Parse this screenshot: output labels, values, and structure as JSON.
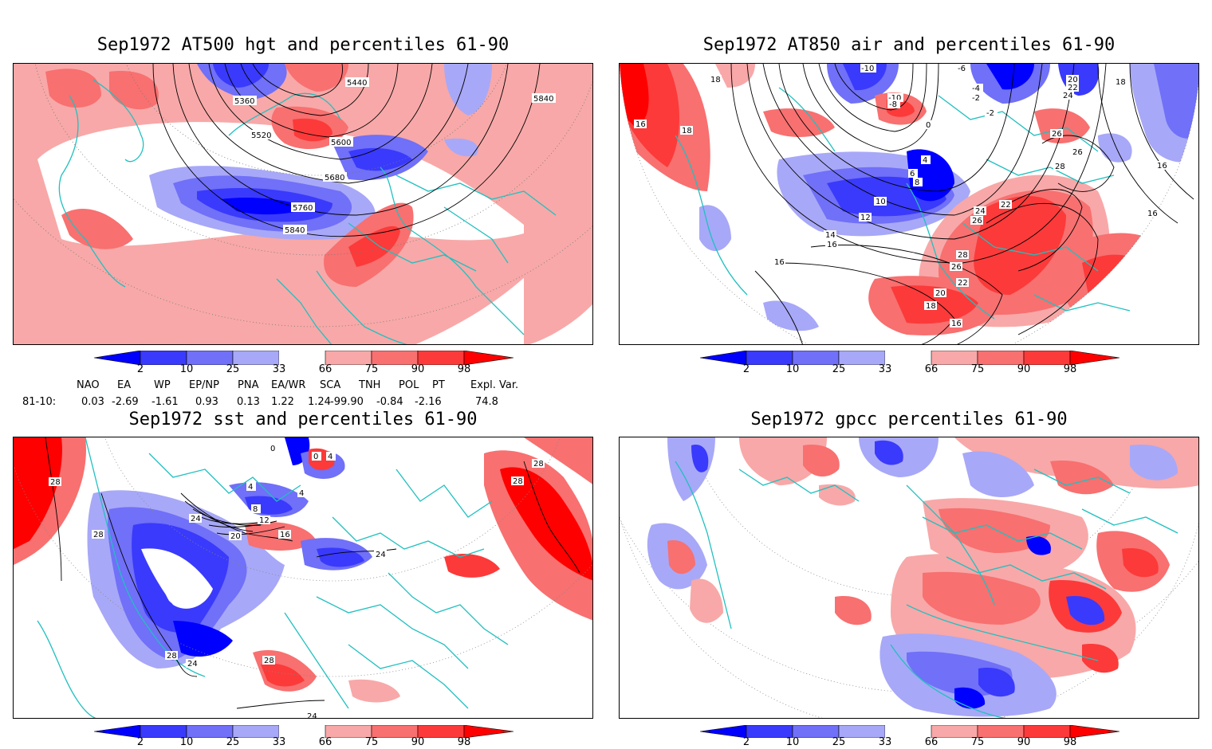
{
  "panels": [
    {
      "title": "Sep1972 AT500 hgt and percentiles 61-90",
      "contour_labels": [
        "5360",
        "5440",
        "5520",
        "5600",
        "5680",
        "5760",
        "5840",
        "5840"
      ]
    },
    {
      "title": "Sep1972 AT850 air and percentiles 61-90",
      "contour_labels": [
        "-10",
        "-6",
        "-4",
        "-2",
        "-10",
        "-8",
        "-2",
        "0",
        "18",
        "18",
        "16",
        "20",
        "22",
        "24",
        "18",
        "26",
        "26",
        "28",
        "16",
        "4",
        "6",
        "8",
        "10",
        "12",
        "14",
        "16",
        "22",
        "24",
        "26",
        "28",
        "26",
        "22",
        "20",
        "18",
        "16",
        "16",
        "16"
      ]
    },
    {
      "title": "Sep1972 sst and percentiles 61-90",
      "contour_labels": [
        "28",
        "28",
        "24",
        "0",
        "0",
        "4",
        "4",
        "4",
        "8",
        "12",
        "16",
        "20",
        "24",
        "28",
        "28",
        "28",
        "28",
        "24",
        "24"
      ]
    },
    {
      "title": "Sep1972 gpcc percentiles 61-90",
      "contour_labels": []
    }
  ],
  "colorbar": {
    "labels": [
      "2",
      "10",
      "25",
      "33",
      "66",
      "75",
      "90",
      "98"
    ],
    "colors": [
      "#0000ff",
      "#3a3afc",
      "#7070f8",
      "#a8a8f8",
      "#ffffff",
      "#f8a8a8",
      "#f87070",
      "#fc3a3a",
      "#ff0000"
    ]
  },
  "teleconnection": {
    "headers": [
      "NAO",
      "EA",
      "WP",
      "EP/NP",
      "PNA",
      "EA/WR",
      "SCA",
      "TNH",
      "POL",
      "PT",
      "Expl. Var."
    ],
    "row_label": "81-10:",
    "values": [
      "0.03",
      "-2.69",
      "-1.61",
      "0.93",
      "0.13",
      "1.22",
      "1.24",
      "-99.90",
      "-0.84",
      "-2.16",
      "74.8"
    ]
  }
}
